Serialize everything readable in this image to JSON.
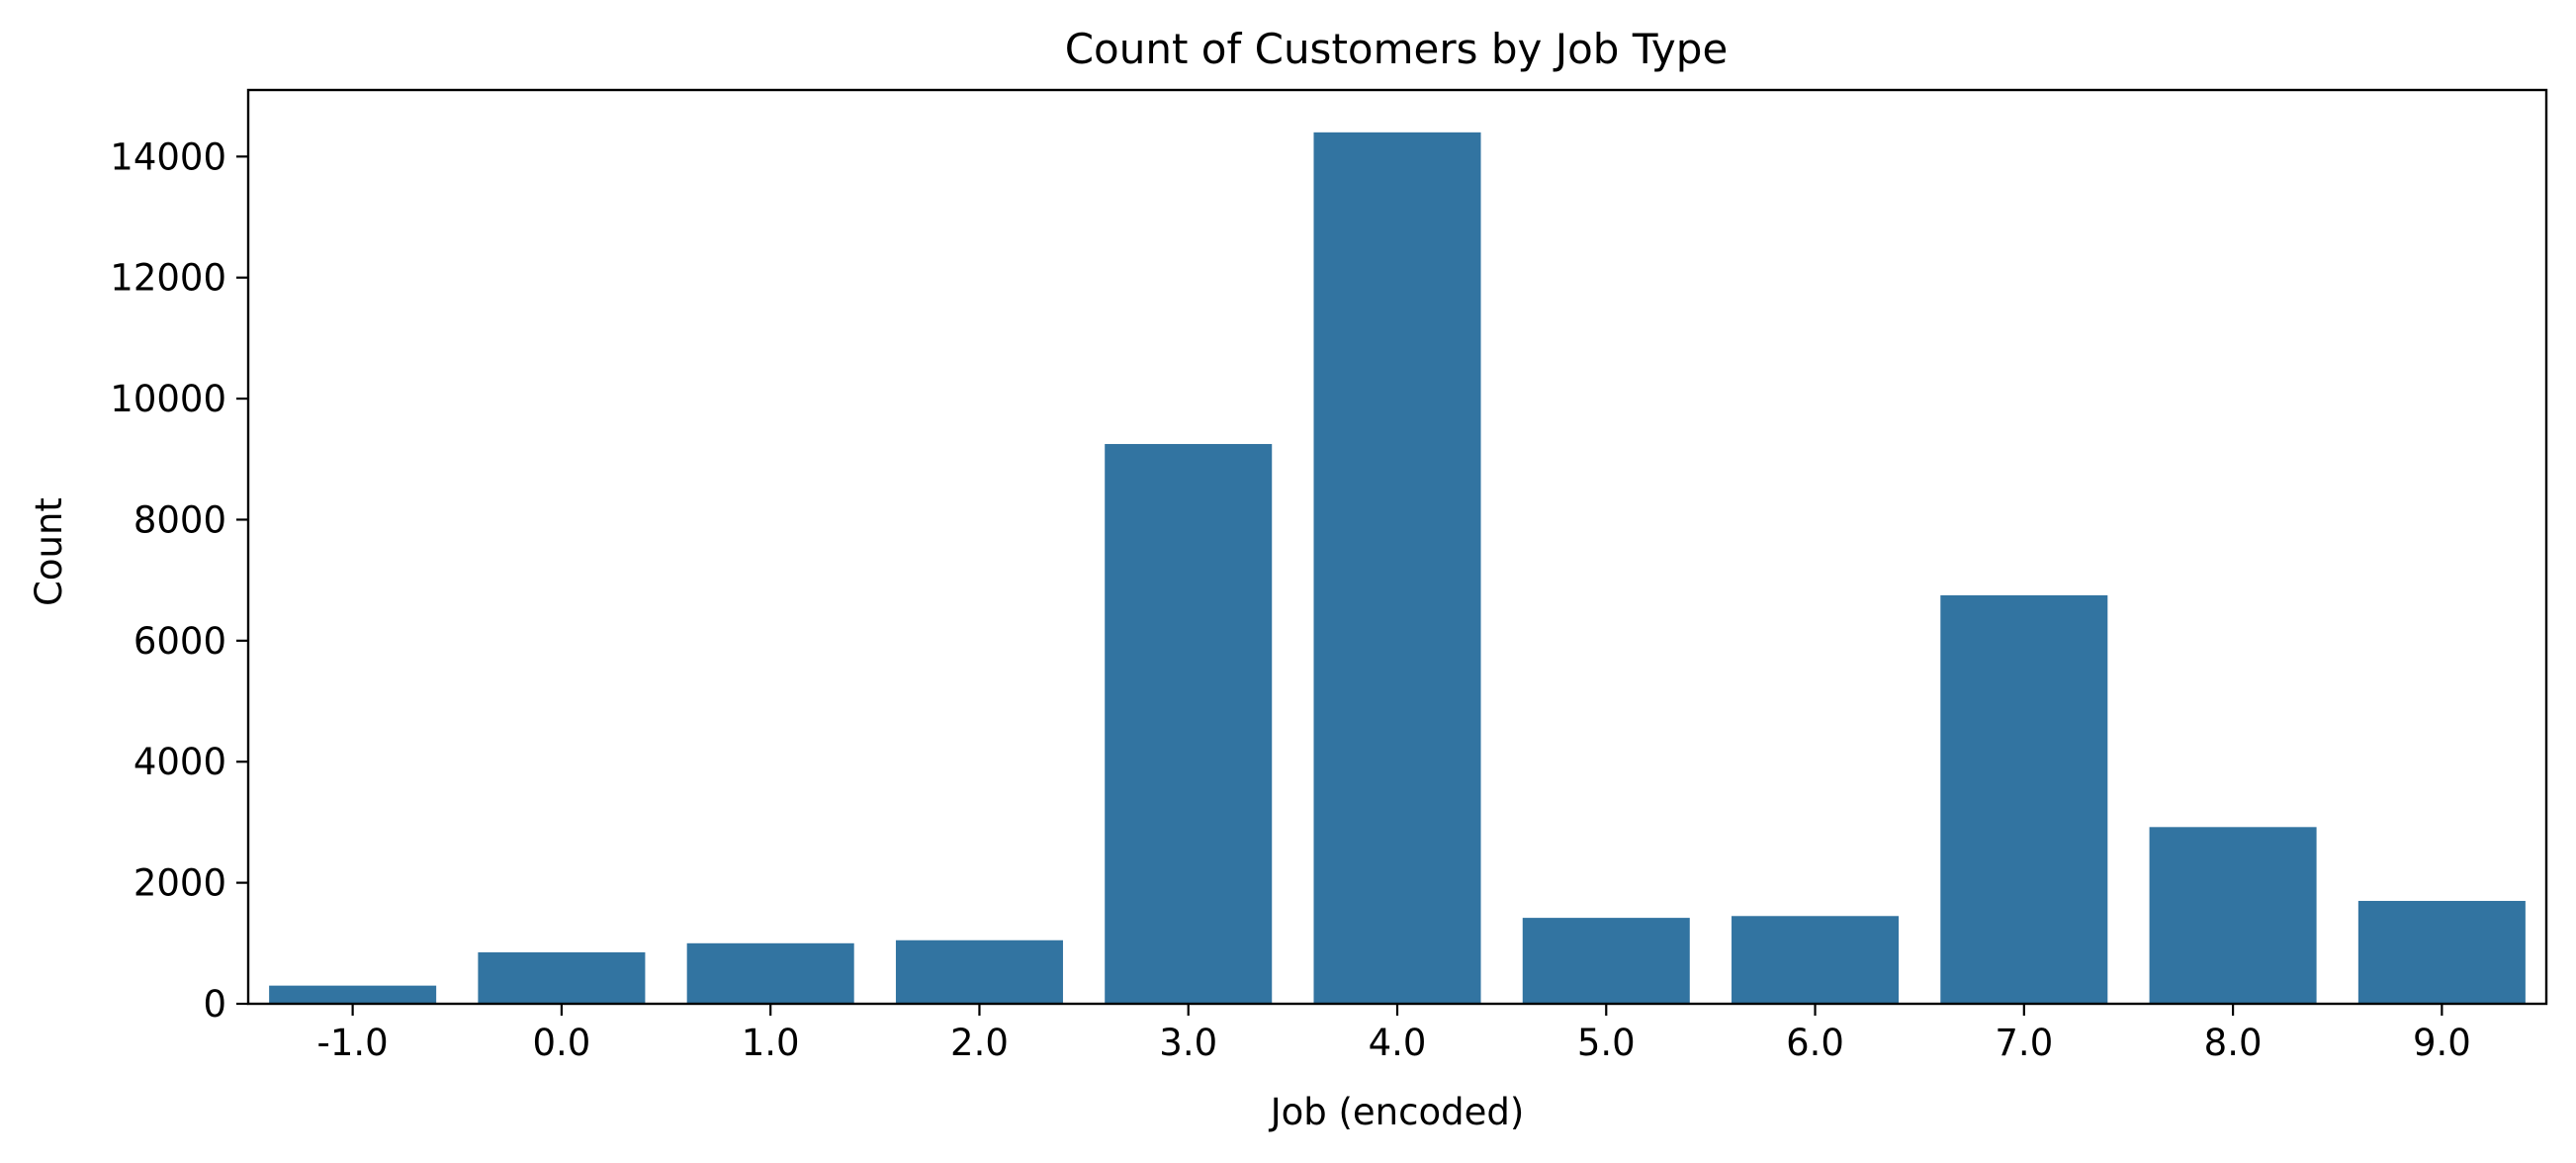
{
  "chart_data": {
    "type": "bar",
    "title": "Count of Customers by Job Type",
    "xlabel": "Job (encoded)",
    "ylabel": "Count",
    "categories": [
      "-1.0",
      "0.0",
      "1.0",
      "2.0",
      "3.0",
      "4.0",
      "5.0",
      "6.0",
      "7.0",
      "8.0",
      "9.0"
    ],
    "values": [
      300,
      850,
      1000,
      1050,
      9250,
      14400,
      1420,
      1450,
      6750,
      2920,
      1700
    ],
    "yticks": [
      0,
      2000,
      4000,
      6000,
      8000,
      10000,
      12000,
      14000
    ],
    "ylim": [
      0,
      15100
    ],
    "grid": false,
    "legend": "none",
    "bar_color": "#3274a1"
  }
}
